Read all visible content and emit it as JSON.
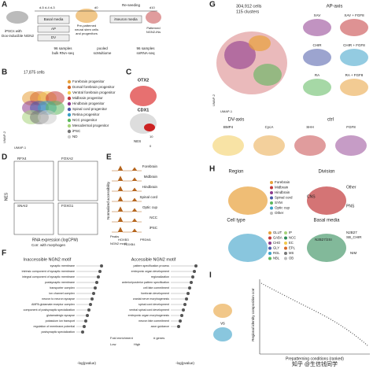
{
  "figure": {
    "A": {
      "letter": "A",
      "ipsc": "iPSCs with",
      "dox": "Dox-inducible NGN2",
      "days": "d-5 d-4 d-3",
      "basal": "Basal media",
      "ap": "AP",
      "dv": "DV",
      "reseed": "Re-seeding",
      "prepat1": "Pre-patterned",
      "prepat2": "neural stem cells",
      "prepat3": "and progenitors",
      "d0": "d0",
      "d10": "d10",
      "neuron": "iNeuron media",
      "patterned1": "Patterned",
      "patterned2": "NGN2-iNs",
      "bulk1": "96 samples",
      "bulk2": "bulk RNA-seq",
      "pooled1": "pooled",
      "pooled2": "scMultiome",
      "sn1": "96 samples",
      "sn2": "snRNA-seq"
    },
    "B": {
      "letter": "B",
      "cells": "17,875 cells",
      "umap1": "UMAP-1",
      "umap2": "UMAP-2",
      "legend": [
        {
          "name": "Forebrain progenitor",
          "color": "#e8a13a"
        },
        {
          "name": "Dorsal forebrain progenitor",
          "color": "#d76a2a"
        },
        {
          "name": "Ventral forebrain progenitor",
          "color": "#f2c84b"
        },
        {
          "name": "Midbrain progenitor",
          "color": "#c2393b"
        },
        {
          "name": "Hindbrain progenitor",
          "color": "#8e3a8e"
        },
        {
          "name": "Spinal cord progenitor",
          "color": "#4a5aa8"
        },
        {
          "name": "Retina progenitor",
          "color": "#3aa0c8"
        },
        {
          "name": "NCC progenitor",
          "color": "#5cb85c"
        },
        {
          "name": "Mesodermal progenitor",
          "color": "#a7d37b"
        },
        {
          "name": "iPSC",
          "color": "#777777"
        },
        {
          "name": "ND",
          "color": "#cccccc"
        }
      ]
    },
    "C": {
      "letter": "C",
      "gene1": "OTX2",
      "gene2": "CDX1",
      "scale": "NES",
      "hi": "10",
      "lo": "0"
    },
    "D": {
      "letter": "D",
      "m1": "RFX4",
      "m2": "FOXA2",
      "m3": "SNAI2",
      "m4": "FOXG1",
      "yl": "NES",
      "xl": "RNA expression (logCPM)",
      "corr": "Corr. with morphogen"
    },
    "E": {
      "letter": "E",
      "tracks": [
        "Forebrain",
        "Midbrain",
        "Hindbrain",
        "Spinal cord",
        "Optic cup",
        "NCC",
        "iPSC"
      ],
      "yl": "Normalized accessibility",
      "g1": "HOXB3",
      "g2": "HOXB4",
      "g3": "PRDM1",
      "peaks": "Peaks",
      "motif": "NGN2 motif"
    },
    "F": {
      "letter": "F",
      "t1": "Inaccessible NGN2 motif",
      "t2": "Accessible NGN2 motif",
      "terms1": [
        "synaptic membrane",
        "intrinsic component of synaptic membrane",
        "integral component of synaptic membrane",
        "postsynaptic membrane",
        "transporter complex",
        "ion channel complex",
        "neuron to neuron synapse",
        "AMPA glutamate receptor complex",
        "component of postsynaptic specialization",
        "glutamatergic synapse",
        "potassium ion transport",
        "regulation of membrane potential",
        "postsynaptic specialization"
      ],
      "terms2": [
        "pattern specification process",
        "embryonic organ development",
        "regionalization",
        "anterior/posterior pattern specification",
        "cell fate commitment",
        "forebrain development",
        "cranial nerve morphogenesis",
        "spinal cord development",
        "ventral spinal cord development",
        "embryonic organ morphogenesis",
        "neuron fate commitment",
        "axon guidance"
      ],
      "xl": "-log(pvalue)",
      "fe": "Fold enrichment",
      "ng": "# genes",
      "low": "Low",
      "high": "High"
    },
    "G": {
      "letter": "G",
      "cells": "304,912 cells",
      "clusters": "115 clusters",
      "umap1": "UMAP-1",
      "umap2": "UMAP-2",
      "ap": "AP-axis",
      "apconds": [
        "XAV",
        "XAV + FGF8",
        "CHIR",
        "CHIR + FGF8",
        "RA",
        "RA + FGF8"
      ],
      "dv": "DV-axis",
      "ctrl": "ctrl",
      "dvconds": [
        "BMP4",
        "CycA",
        "SHH",
        "FGF8"
      ]
    },
    "H": {
      "letter": "H",
      "region": "Region",
      "regions": [
        {
          "name": "Forebrain",
          "color": "#e8a13a"
        },
        {
          "name": "Midbrain",
          "color": "#c2393b"
        },
        {
          "name": "Hindbrain",
          "color": "#8e3a8e"
        },
        {
          "name": "Spinal cord",
          "color": "#4a5aa8"
        },
        {
          "name": "SYM",
          "color": "#5cb85c"
        },
        {
          "name": "Optic cup",
          "color": "#3aa0c8"
        },
        {
          "name": "Other",
          "color": "#bbbbbb"
        }
      ],
      "division": "Division",
      "cns": "CNS",
      "pns": "PNS",
      "other": "Other",
      "celltype": "Cell type",
      "types": [
        {
          "name": "GLUT",
          "color": "#e8a13a"
        },
        {
          "name": "GABA",
          "color": "#c2393b"
        },
        {
          "name": "CHO",
          "color": "#8e3a8e"
        },
        {
          "name": "GLY",
          "color": "#4a5aa8"
        },
        {
          "name": "RGL",
          "color": "#3aa0c8"
        },
        {
          "name": "NBL",
          "color": "#5cb85c"
        },
        {
          "name": "IP",
          "color": "#a7d37b"
        },
        {
          "name": "NCC",
          "color": "#2e8b57"
        },
        {
          "name": "EC",
          "color": "#f2c84b"
        },
        {
          "name": "EPL",
          "color": "#d76a2a"
        },
        {
          "name": "MS",
          "color": "#777777"
        },
        {
          "name": "OB",
          "color": "#bbbbbb"
        }
      ],
      "basal": "Basal media",
      "media": [
        "N2B27",
        "SB_CHIR",
        "N2B27/2SI",
        "NIM"
      ]
    },
    "I": {
      "letter": "I",
      "vs": "vs",
      "yl": "Regional identity composition corr",
      "xl": "Prepatterning conditions (ranked)"
    },
    "watermark": "知乎 @生信钱同学"
  }
}
